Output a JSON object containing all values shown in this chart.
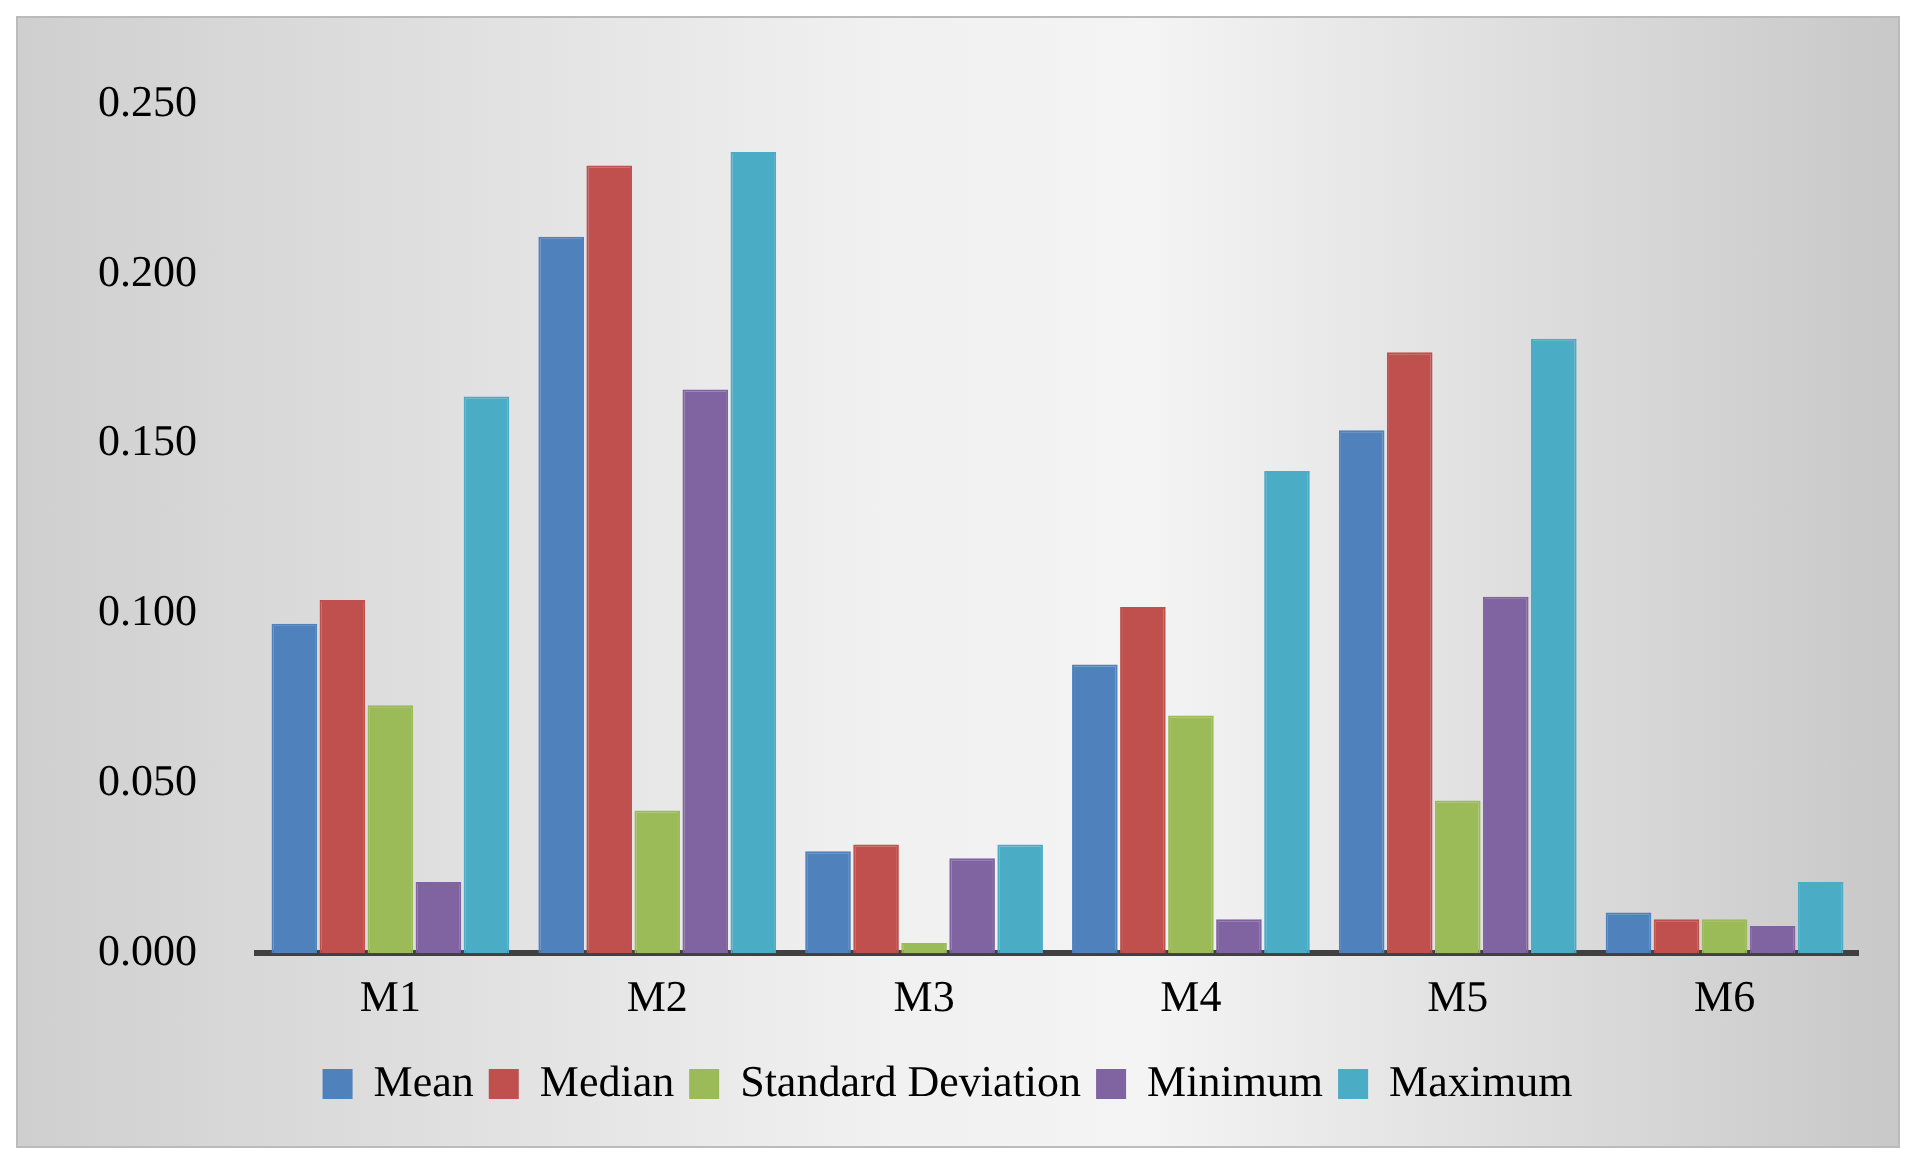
{
  "chart_data": {
    "type": "bar",
    "categories": [
      "M1",
      "M2",
      "M3",
      "M4",
      "M5",
      "M6"
    ],
    "series": [
      {
        "name": "Mean",
        "color": "#4f81bd",
        "values": [
          0.097,
          0.211,
          0.03,
          0.085,
          0.154,
          0.012
        ]
      },
      {
        "name": "Median",
        "color": "#c0504d",
        "values": [
          0.104,
          0.232,
          0.032,
          0.102,
          0.177,
          0.01
        ]
      },
      {
        "name": "Standard Deviation",
        "color": "#9bbb59",
        "values": [
          0.073,
          0.042,
          0.003,
          0.07,
          0.045,
          0.01
        ]
      },
      {
        "name": "Minimum",
        "color": "#8064a2",
        "values": [
          0.021,
          0.166,
          0.028,
          0.01,
          0.105,
          0.008
        ]
      },
      {
        "name": "Maximum",
        "color": "#4bacc6",
        "values": [
          0.164,
          0.236,
          0.032,
          0.142,
          0.181,
          0.021
        ]
      }
    ],
    "ylim": [
      0,
      0.25
    ],
    "yticks": [
      {
        "value": 0,
        "label": "0.000"
      },
      {
        "value": 0.05,
        "label": "0.050"
      },
      {
        "value": 0.1,
        "label": "0.100"
      },
      {
        "value": 0.15,
        "label": "0.150"
      },
      {
        "value": 0.2,
        "label": "0.200"
      },
      {
        "value": 0.25,
        "label": "0.250"
      }
    ],
    "grid": false,
    "legend": "bottom"
  }
}
